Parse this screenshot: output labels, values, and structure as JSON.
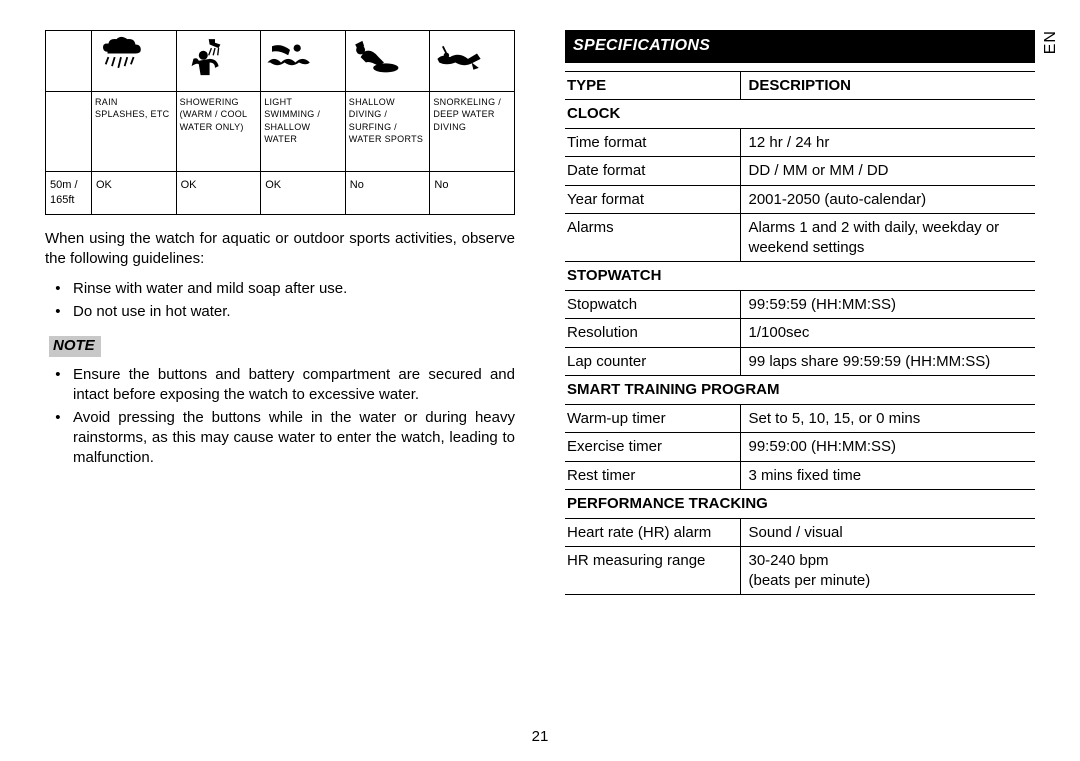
{
  "lang_tab": "EN",
  "page_number": "21",
  "water_table": {
    "columns": [
      {
        "caption": "RAIN SPLASHES, ETC"
      },
      {
        "caption": "SHOWERING (WARM / COOL WATER ONLY)"
      },
      {
        "caption": "LIGHT SWIMMING / SHALLOW WATER"
      },
      {
        "caption": "SHALLOW DIVING / SURFING / WATER SPORTS"
      },
      {
        "caption": "SNORKELING / DEEP WATER DIVING"
      }
    ],
    "row_label": "50m / 165ft",
    "row_values": [
      "OK",
      "OK",
      "OK",
      "No",
      "No"
    ]
  },
  "left": {
    "intro": "When using the watch for aquatic or outdoor sports activities, observe the following guidelines:",
    "guidelines": [
      "Rinse with water and mild soap after use.",
      "Do not use in hot water."
    ],
    "note_label": "NOTE",
    "notes": [
      "Ensure the buttons and battery compartment are secured and intact before exposing the watch to excessive water.",
      "Avoid pressing the buttons while in the water or during heavy rainstorms, as this may cause water to enter the watch, leading to malfunction."
    ]
  },
  "spec": {
    "title": "SPECIFICATIONS",
    "header": {
      "l": "TYPE",
      "r": "DESCRIPTION"
    },
    "sections": [
      {
        "title": "CLOCK",
        "rows": [
          {
            "l": "Time format",
            "r": "12 hr / 24 hr"
          },
          {
            "l": "Date format",
            "r": "DD / MM or MM / DD"
          },
          {
            "l": "Year format",
            "r": "2001-2050 (auto-calendar)"
          },
          {
            "l": "Alarms",
            "r": "Alarms 1 and 2 with daily, weekday or weekend settings"
          }
        ]
      },
      {
        "title": "STOPWATCH",
        "rows": [
          {
            "l": "Stopwatch",
            "r": "99:59:59 (HH:MM:SS)"
          },
          {
            "l": "Resolution",
            "r": "1/100sec"
          },
          {
            "l": "Lap counter",
            "r": "99 laps share 99:59:59 (HH:MM:SS)"
          }
        ]
      },
      {
        "title": "SMART TRAINING PROGRAM",
        "rows": [
          {
            "l": "Warm-up timer",
            "r": "Set to 5, 10, 15, or 0 mins"
          },
          {
            "l": "Exercise timer",
            "r": "99:59:00 (HH:MM:SS)"
          },
          {
            "l": "Rest timer",
            "r": "3 mins fixed time"
          }
        ]
      },
      {
        "title": "PERFORMANCE TRACKING",
        "rows": [
          {
            "l": "Heart rate (HR) alarm",
            "r": "Sound / visual"
          },
          {
            "l": "HR measuring range",
            "r": "30-240 bpm\n(beats per minute)"
          }
        ]
      }
    ]
  }
}
